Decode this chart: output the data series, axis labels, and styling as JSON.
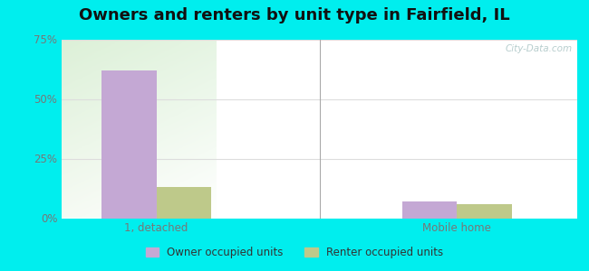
{
  "title": "Owners and renters by unit type in Fairfield, IL",
  "title_fontsize": 13,
  "title_fontweight": "bold",
  "categories": [
    "1, detached",
    "Mobile home"
  ],
  "owner_values": [
    62,
    7
  ],
  "renter_values": [
    13,
    6
  ],
  "owner_color": "#c4a8d4",
  "renter_color": "#bec98a",
  "ylim": [
    0,
    75
  ],
  "yticks": [
    0,
    25,
    50,
    75
  ],
  "ytick_labels": [
    "0%",
    "25%",
    "50%",
    "75%"
  ],
  "bar_width": 0.32,
  "group_positions": [
    0.65,
    2.4
  ],
  "outer_bg": "#00eeee",
  "legend_owner": "Owner occupied units",
  "legend_renter": "Renter occupied units",
  "watermark": "City-Data.com",
  "tick_color": "#777777",
  "grid_color": "#dddddd",
  "separator_color": "#aaaaaa",
  "bg_color_topleft": "#d8ede0",
  "bg_color_topright": "#e8f5e8",
  "bg_color_bottomleft": "#eaf5e0",
  "bg_color_bottomright": "#f5fde8"
}
